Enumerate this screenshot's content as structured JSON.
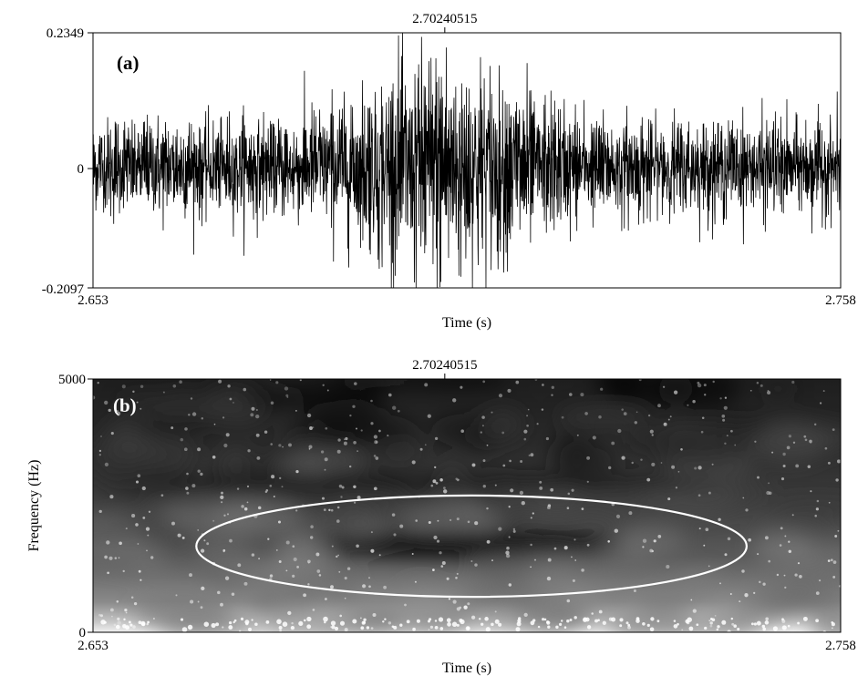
{
  "chart_data": [
    {
      "panel": "(a)",
      "type": "line",
      "xlabel": "Time (s)",
      "ylabel": "",
      "xlim": [
        2.653,
        2.758
      ],
      "ylim": [
        -0.2097,
        0.2349
      ],
      "x_tick_labels": [
        "2.653",
        "2.758"
      ],
      "y_tick_labels": [
        "0.2349",
        "0",
        "-0.2097"
      ],
      "cursor_label": "2.70240515",
      "cursor_x": 2.70240515,
      "grid": false,
      "line_color": "#000000"
    },
    {
      "panel": "(b)",
      "type": "heatmap",
      "xlabel": "Time (s)",
      "ylabel": "Frequency (Hz)",
      "xlim": [
        2.653,
        2.758
      ],
      "ylim": [
        0,
        5000
      ],
      "x_tick_labels": [
        "2.653",
        "2.758"
      ],
      "y_tick_labels": [
        "5000",
        "0"
      ],
      "cursor_label": "2.70240515",
      "cursor_x": 2.70240515,
      "grid": false,
      "annotation": {
        "shape": "ellipse",
        "x_range": [
          2.6675,
          2.7448
        ],
        "y_range": [
          700,
          2700
        ],
        "color": "#ffffff"
      }
    }
  ]
}
